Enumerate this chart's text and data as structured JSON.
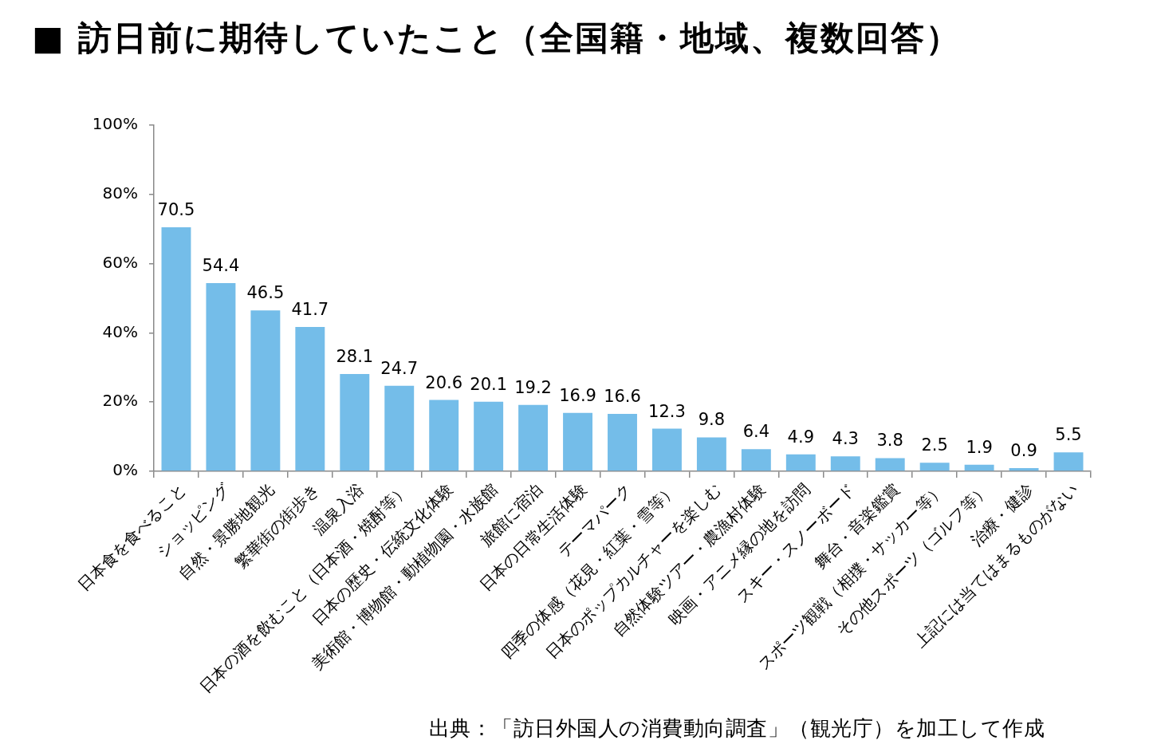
{
  "chart_data": {
    "type": "bar",
    "title": "■ 訪日前に期待していたこと（全国籍・地域、複数回答）",
    "annotations": [
      "出典：「訪日外国人の消費動向調査」（観光庁）を加工して作成"
    ],
    "categories": [
      "日本食を食べること",
      "ショッピング",
      "自然・景勝地観光",
      "繁華街の街歩き",
      "温泉入浴",
      "日本の酒を飲むこと（日本酒・焼酎等）",
      "日本の歴史・伝統文化体験",
      "美術館・博物館・動植物園・水族館",
      "旅館に宿泊",
      "日本の日常生活体験",
      "テーマパーク",
      "四季の体感（花見・紅葉・雪等）",
      "日本のポップカルチャーを楽しむ",
      "自然体験ツアー・農漁村体験",
      "映画・アニメ縁の地を訪問",
      "スキー・スノーボード",
      "舞台・音楽鑑賞",
      "スポーツ観戦（相撲・サッカー等）",
      "その他スポーツ（ゴルフ等）",
      "治療・健診",
      "上記には当てはまるものがない"
    ],
    "values": [
      70.5,
      54.4,
      46.5,
      41.7,
      28.1,
      24.7,
      20.6,
      20.1,
      19.2,
      16.9,
      16.6,
      12.3,
      9.8,
      6.4,
      4.9,
      4.3,
      3.8,
      2.5,
      1.9,
      0.9,
      5.5
    ],
    "color": "#74bde9",
    "ylim": [
      0,
      100
    ],
    "yticks": [
      {
        "value": 0,
        "label": "0%"
      },
      {
        "value": 20,
        "label": "20%"
      },
      {
        "value": 40,
        "label": "40%"
      },
      {
        "value": 60,
        "label": "60%"
      },
      {
        "value": 80,
        "label": "80%"
      },
      {
        "value": 100,
        "label": "100%"
      }
    ],
    "grid": false,
    "data_labels": true
  }
}
